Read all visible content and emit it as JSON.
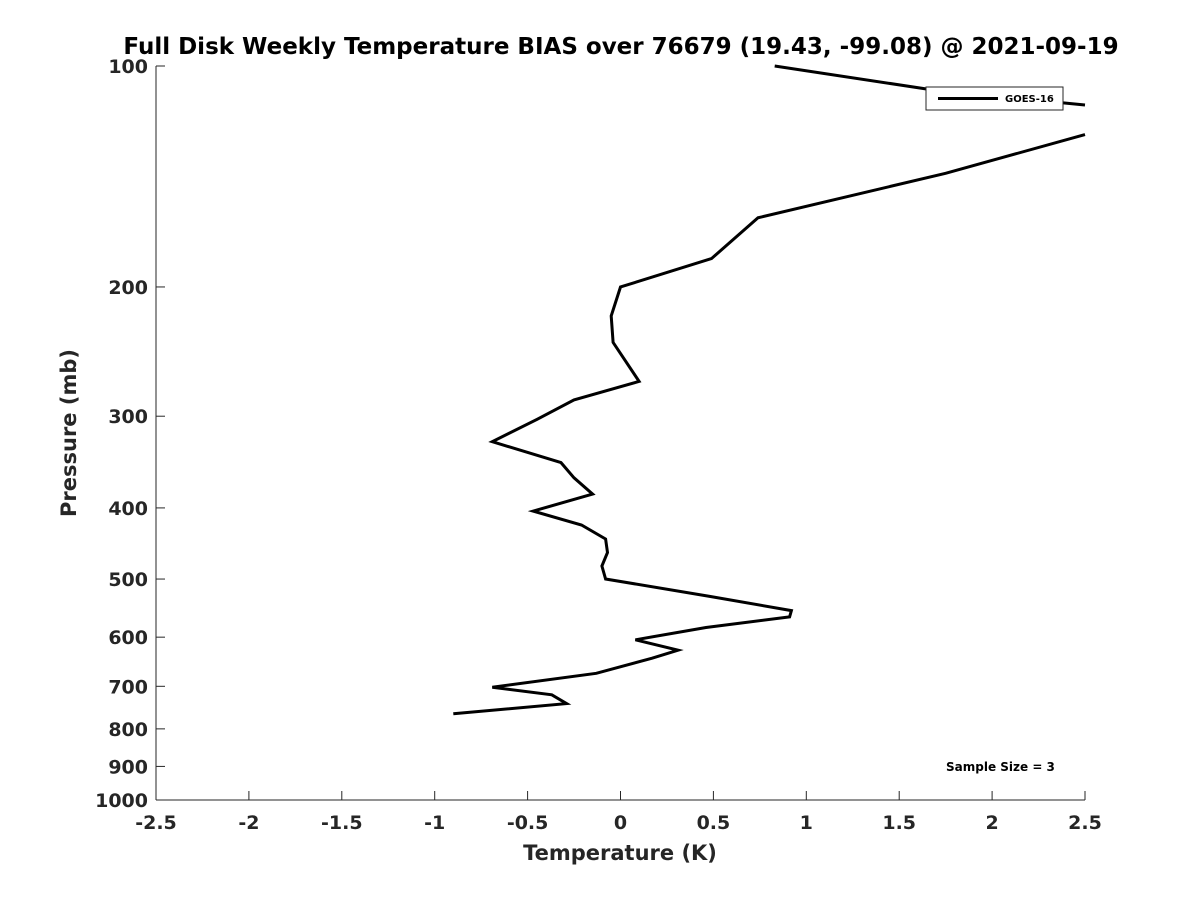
{
  "chart_data": {
    "type": "line",
    "title": "Full Disk Weekly Temperature BIAS over 76679 (19.43, -99.08) @ 2021-09-19",
    "xlabel": "Temperature (K)",
    "ylabel": "Pressure (mb)",
    "xlim": [
      -2.5,
      2.5
    ],
    "ylim": [
      100,
      1000
    ],
    "y_scale": "log",
    "y_reversed": true,
    "x_ticks": [
      "-2.5",
      "-2",
      "-1.5",
      "-1",
      "-0.5",
      "0",
      "0.5",
      "1",
      "1.5",
      "2",
      "2.5"
    ],
    "y_ticks": [
      "100",
      "200",
      "300",
      "400",
      "500",
      "600",
      "700",
      "800",
      "900",
      "1000"
    ],
    "grid": false,
    "legend_position": "top-right",
    "annotation": "Sample Size = 3",
    "series": [
      {
        "name": "GOES-16",
        "color": "#000000",
        "segments": [
          {
            "x": [
              0.83,
              1.7,
              2.5
            ],
            "y": [
              100,
              108,
              113
            ]
          },
          {
            "x": [
              2.5,
              1.75,
              0.74,
              0.49,
              0.0,
              -0.05,
              -0.04,
              0.1,
              -0.25,
              -0.45,
              -0.69,
              -0.32,
              -0.25,
              -0.15,
              -0.47,
              -0.21,
              -0.08,
              -0.07,
              -0.1,
              -0.08,
              0.48,
              0.92,
              0.91,
              0.46,
              0.08,
              0.31,
              0.17,
              -0.13,
              -0.69,
              -0.37,
              -0.29,
              -0.9
            ],
            "y": [
              124,
              140,
              161,
              183,
              200,
              219,
              238,
              269,
              285,
              303,
              325,
              347,
              364,
              383,
              404,
              422,
              441,
              460,
              480,
              500,
              528,
              552,
              563,
              582,
              605,
              625,
              641,
              672,
              702,
              719,
              739,
              763
            ]
          }
        ]
      }
    ]
  }
}
